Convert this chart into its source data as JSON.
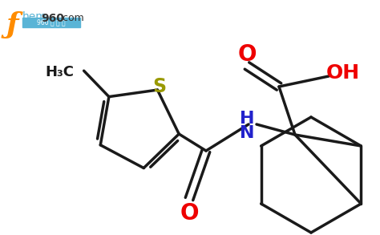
{
  "background_color": "#ffffff",
  "line_color": "#1a1a1a",
  "bond_width": 2.5,
  "O_color": "#ee0000",
  "N_color": "#2222cc",
  "S_color": "#999900",
  "HC_color": "#1a1a1a",
  "figsize": [
    4.74,
    2.93
  ],
  "dpi": 100,
  "xlim": [
    0,
    474
  ],
  "ylim": [
    0,
    293
  ]
}
